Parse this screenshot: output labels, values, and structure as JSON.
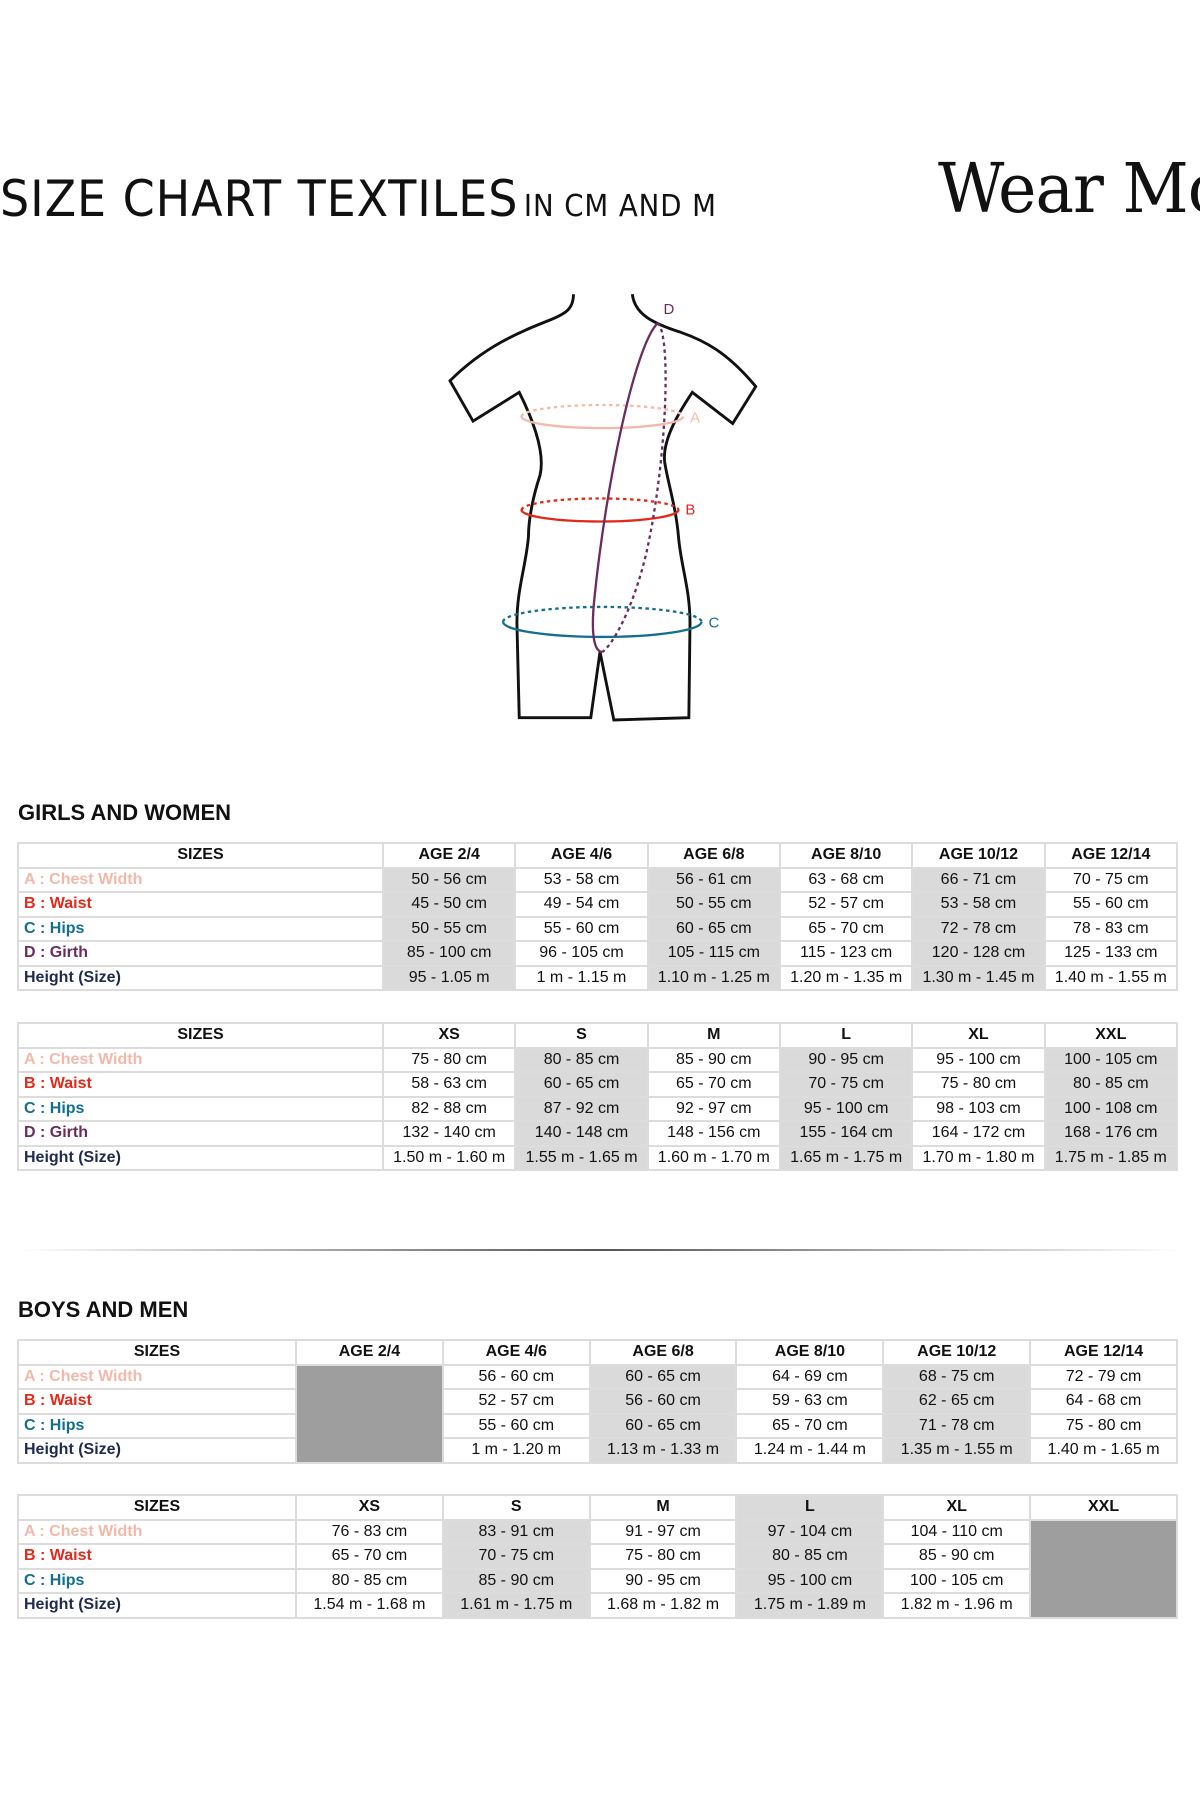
{
  "header": {
    "title": "SIZE CHART TEXTILES",
    "subtitle": "IN CM AND M",
    "logo_text": "Wear Moi"
  },
  "figure": {
    "labels": {
      "a": "A",
      "b": "B",
      "c": "C",
      "d": "D"
    }
  },
  "colors": {
    "chest": "#f2b9ab",
    "waist": "#e2291b",
    "hips": "#136f8f",
    "girth": "#6b2c5f",
    "height": "#1e2b4f",
    "shade": "#dadada",
    "unavailable": "#9e9e9e"
  },
  "sections": [
    {
      "title": "GIRLS AND WOMEN",
      "tables": [
        {
          "columns": [
            "SIZES",
            "AGE 2/4",
            "AGE 4/6",
            "AGE 6/8",
            "AGE 8/10",
            "AGE 10/12",
            "AGE 12/14"
          ],
          "shaded_columns": [
            1,
            3,
            5
          ],
          "shaded_headers": [],
          "unavailable_columns": [],
          "rows": [
            {
              "label": "A : Chest Width",
              "color_key": "chest",
              "values": [
                "50 - 56 cm",
                "53 - 58 cm",
                "56 - 61 cm",
                "63 - 68 cm",
                "66 - 71 cm",
                "70 - 75 cm"
              ]
            },
            {
              "label": "B : Waist",
              "color_key": "waist",
              "values": [
                "45 - 50 cm",
                "49  - 54 cm",
                "50 - 55 cm",
                "52 - 57 cm",
                "53 - 58 cm",
                "55 - 60 cm"
              ]
            },
            {
              "label": "C : Hips",
              "color_key": "hips",
              "values": [
                "50 - 55 cm",
                "55 - 60 cm",
                "60 - 65 cm",
                "65 - 70 cm",
                "72 - 78 cm",
                "78 - 83 cm"
              ]
            },
            {
              "label": "D : Girth",
              "color_key": "girth",
              "values": [
                "85 - 100 cm",
                "96 - 105 cm",
                "105 - 115  cm",
                "115 - 123 cm",
                "120 - 128 cm",
                "125 - 133 cm"
              ]
            },
            {
              "label": "Height (Size)",
              "color_key": "height",
              "values": [
                "95 - 1.05 m",
                "1 m - 1.15 m",
                "1.10 m - 1.25 m",
                "1.20 m - 1.35 m",
                "1.30 m - 1.45 m",
                "1.40 m - 1.55 m"
              ]
            }
          ]
        },
        {
          "columns": [
            "SIZES",
            "XS",
            "S",
            "M",
            "L",
            "XL",
            "XXL"
          ],
          "shaded_columns": [
            2,
            4,
            6
          ],
          "shaded_headers": [],
          "unavailable_columns": [],
          "rows": [
            {
              "label": "A : Chest Width",
              "color_key": "chest",
              "values": [
                "75 - 80 cm",
                "80 - 85 cm",
                "85 - 90 cm",
                "90 - 95 cm",
                "95 - 100 cm",
                "100 - 105 cm"
              ]
            },
            {
              "label": "B : Waist",
              "color_key": "waist",
              "values": [
                "58 - 63 cm",
                "60 - 65 cm",
                "65 - 70 cm",
                "70 - 75 cm",
                "75 - 80 cm",
                "80 - 85 cm"
              ]
            },
            {
              "label": "C : Hips",
              "color_key": "hips",
              "values": [
                "82 - 88 cm",
                "87 - 92 cm",
                "92 - 97 cm",
                "95 - 100 cm",
                "98 - 103 cm",
                "100 - 108 cm"
              ]
            },
            {
              "label": "D : Girth",
              "color_key": "girth",
              "values": [
                "132 - 140 cm",
                "140 - 148 cm",
                "148 - 156 cm",
                "155 - 164 cm",
                "164 - 172 cm",
                "168 - 176 cm"
              ]
            },
            {
              "label": "Height (Size)",
              "color_key": "height",
              "values": [
                "1.50 m - 1.60 m",
                "1.55 m - 1.65 m",
                "1.60 m - 1.70 m",
                "1.65 m - 1.75 m",
                "1.70 m - 1.80 m",
                "1.75 m - 1.85 m"
              ]
            }
          ]
        }
      ]
    },
    {
      "title": "BOYS AND MEN",
      "tables": [
        {
          "columns": [
            "SIZES",
            "AGE 2/4",
            "AGE 4/6",
            "AGE 6/8",
            "AGE 8/10",
            "AGE 10/12",
            "AGE 12/14"
          ],
          "shaded_columns": [
            3,
            5
          ],
          "shaded_headers": [],
          "unavailable_columns": [
            1
          ],
          "rows": [
            {
              "label": "A : Chest Width",
              "color_key": "chest",
              "values": [
                "",
                "56 - 60 cm",
                "60 - 65 cm",
                "64 - 69 cm",
                "68 - 75 cm",
                "72 - 79 cm"
              ]
            },
            {
              "label": "B : Waist",
              "color_key": "waist",
              "values": [
                "",
                "52  - 57 cm",
                "56 - 60 cm",
                "59 - 63 cm",
                "62 - 65 cm",
                "64 - 68 cm"
              ]
            },
            {
              "label": "C : Hips",
              "color_key": "hips",
              "values": [
                "",
                "55 - 60 cm",
                "60 - 65 cm",
                "65 - 70 cm",
                "71 - 78 cm",
                "75 - 80 cm"
              ]
            },
            {
              "label": "Height (Size)",
              "color_key": "height",
              "values": [
                "",
                "1 m - 1.20 m",
                "1.13 m - 1.33 m",
                "1.24 m - 1.44 m",
                "1.35 m - 1.55 m",
                "1.40 m - 1.65 m"
              ]
            }
          ]
        },
        {
          "columns": [
            "SIZES",
            "XS",
            "S",
            "M",
            "L",
            "XL",
            "XXL"
          ],
          "shaded_columns": [
            2,
            4
          ],
          "shaded_headers": [
            4
          ],
          "unavailable_columns": [
            6
          ],
          "rows": [
            {
              "label": "A : Chest Width",
              "color_key": "chest",
              "values": [
                "76 - 83 cm",
                "83 - 91 cm",
                "91 - 97 cm",
                "97 - 104 cm",
                "104 - 110 cm",
                ""
              ]
            },
            {
              "label": "B : Waist",
              "color_key": "waist",
              "values": [
                "65 - 70 cm",
                "70 - 75 cm",
                "75 - 80 cm",
                "80 - 85 cm",
                "85 - 90 cm",
                ""
              ]
            },
            {
              "label": "C : Hips",
              "color_key": "hips",
              "values": [
                "80 - 85 cm",
                "85 - 90 cm",
                "90 - 95 cm",
                "95 - 100 cm",
                "100 - 105 cm",
                ""
              ]
            },
            {
              "label": "Height (Size)",
              "color_key": "height",
              "values": [
                "1.54 m - 1.68 m",
                "1.61 m - 1.75 m",
                "1.68 m - 1.82 m",
                "1.75 m - 1.89 m",
                "1.82 m - 1.96 m",
                ""
              ]
            }
          ]
        }
      ]
    }
  ]
}
